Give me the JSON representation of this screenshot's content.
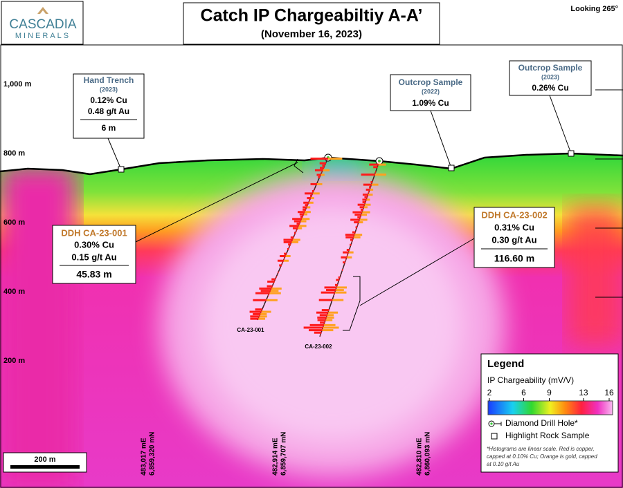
{
  "logo": {
    "name": "CASCADIA",
    "sub": "MINERALS"
  },
  "header": {
    "title": "Catch IP Chargeabiltiy A-A’",
    "subtitle": "(November 16, 2023)",
    "view": "Looking 265°"
  },
  "elevation_labels": [
    "1,000 m",
    "800 m",
    "600 m",
    "400 m",
    "200 m"
  ],
  "samples": [
    {
      "title": "Hand Trench",
      "year": "(2023)",
      "lines": [
        "0.12% Cu",
        "0.48 g/t Au"
      ],
      "length": "6 m"
    },
    {
      "title": "Outcrop Sample",
      "year": "(2022)",
      "lines": [
        "1.09% Cu"
      ]
    },
    {
      "title": "Outcrop Sample",
      "year": "(2023)",
      "lines": [
        "0.26% Cu"
      ]
    }
  ],
  "intercepts": [
    {
      "hole": "DDH CA-23-001",
      "lines": [
        "0.30% Cu",
        "0.15 g/t Au"
      ],
      "length": "45.83 m"
    },
    {
      "hole": "DDH CA-23-002",
      "lines": [
        "0.31% Cu",
        "0.30 g/t Au"
      ],
      "length": "116.60 m"
    }
  ],
  "hole_labels": [
    "CA-23-001",
    "CA-23-002"
  ],
  "coordinates": [
    [
      "483,017 mE",
      "6,859,320 mN"
    ],
    [
      "482,914 mE",
      "6,859,707 mN"
    ],
    [
      "482,810 mE",
      "6,860,093 mN"
    ]
  ],
  "scale_bar": "200 m",
  "legend": {
    "title": "Legend",
    "scale_title": "IP Chargeability (mV/V)",
    "scale_ticks": [
      2,
      6,
      9,
      13,
      16
    ],
    "items": [
      "Diamond Drill Hole*",
      "Highlight Rock Sample"
    ],
    "note": [
      "*Histograms are linear scale. Red is copper,",
      "capped at 0.10% Cu; Orange is gold, capped",
      "at 0.10 g/t Au"
    ]
  }
}
